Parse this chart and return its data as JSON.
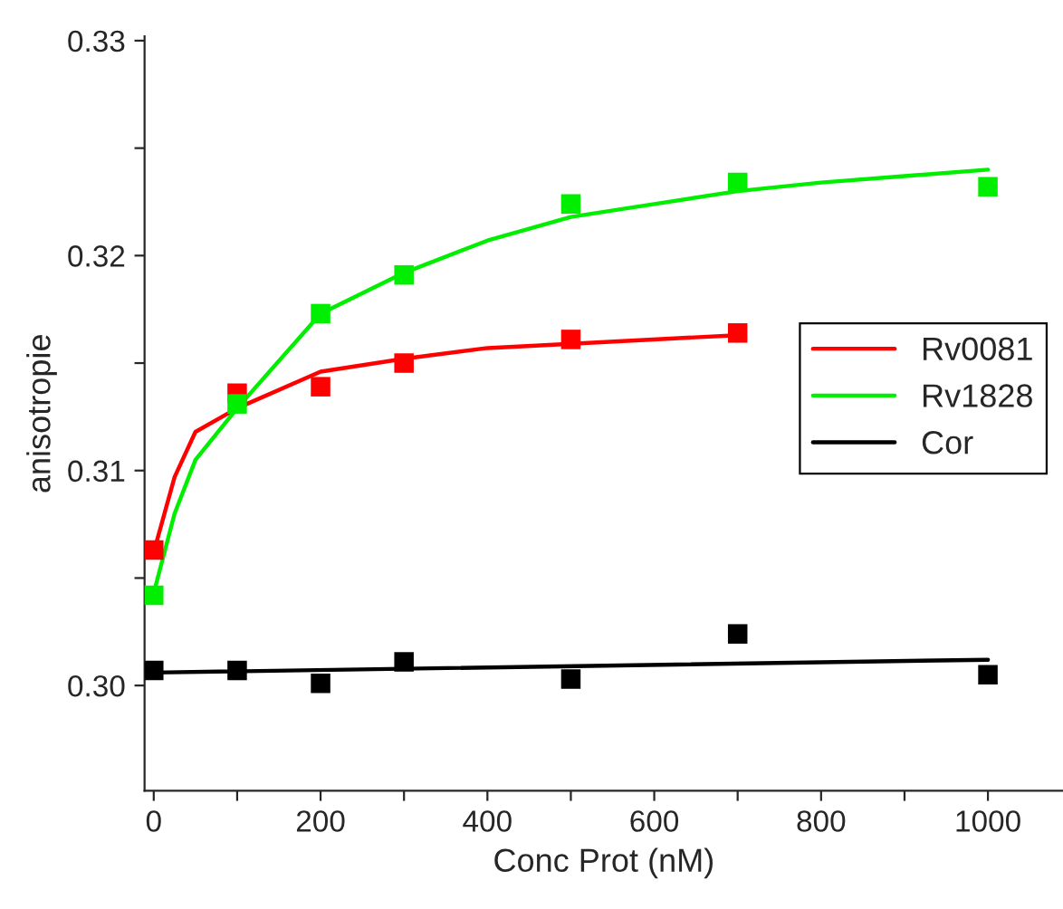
{
  "chart_data": {
    "type": "line",
    "xlabel": "Conc Prot (nM)",
    "ylabel": "anisotropie",
    "xlim": [
      -11,
      1090
    ],
    "ylim": [
      0.2951,
      0.3302
    ],
    "xticks": [
      0,
      {
        "value": 100,
        "label": null
      },
      200,
      {
        "value": 300,
        "label": null
      },
      400,
      {
        "value": 500,
        "label": null
      },
      600,
      {
        "value": 700,
        "label": null
      },
      800,
      {
        "value": 900,
        "label": null
      },
      1000
    ],
    "yticks": [
      {
        "value": 0.3,
        "label": "0.30"
      },
      {
        "value": 0.305,
        "label": null
      },
      {
        "value": 0.31,
        "label": "0.31"
      },
      {
        "value": 0.315,
        "label": null
      },
      {
        "value": 0.32,
        "label": "0.32"
      },
      {
        "value": 0.325,
        "label": null
      },
      {
        "value": 0.33,
        "label": "0.33"
      }
    ],
    "grid": false,
    "legend": "right",
    "series": [
      {
        "type": "scatter",
        "marker": "square",
        "color": "#ff0000",
        "x": [
          0,
          100,
          200,
          300,
          500,
          700
        ],
        "values": [
          0.3063,
          0.3136,
          0.3139,
          0.315,
          0.3161,
          0.3164
        ]
      },
      {
        "type": "scatter",
        "marker": "square",
        "color": "#00ee00",
        "x": [
          0,
          100,
          200,
          300,
          500,
          700,
          1000
        ],
        "values": [
          0.3042,
          0.3131,
          0.3173,
          0.3191,
          0.3224,
          0.3234,
          0.3232
        ]
      },
      {
        "type": "scatter",
        "marker": "square",
        "color": "#000000",
        "x": [
          0,
          100,
          200,
          300,
          500,
          700,
          1000
        ],
        "values": [
          0.3007,
          0.3007,
          0.3001,
          0.3011,
          0.3003,
          0.3024,
          0.3005
        ]
      },
      {
        "marker": "none",
        "name": "Rv0081",
        "color": "#ff0000",
        "x": [
          0,
          25,
          50,
          100,
          200,
          300,
          400,
          500,
          700
        ],
        "values": [
          0.3062,
          0.3097,
          0.3118,
          0.3129,
          0.3146,
          0.3152,
          0.3157,
          0.3159,
          0.3163
        ]
      },
      {
        "marker": "none",
        "name": "Rv1828",
        "color": "#00ee00",
        "x": [
          0,
          25,
          50,
          100,
          200,
          300,
          400,
          500,
          600,
          700,
          800,
          900,
          1000
        ],
        "values": [
          0.3043,
          0.308,
          0.3105,
          0.3129,
          0.3173,
          0.3192,
          0.3207,
          0.3218,
          0.3224,
          0.323,
          0.3234,
          0.3237,
          0.324
        ]
      },
      {
        "marker": "none",
        "name": "Cor",
        "color": "#000000",
        "x": [
          0,
          1000
        ],
        "values": [
          0.3006,
          0.3012
        ]
      }
    ]
  }
}
